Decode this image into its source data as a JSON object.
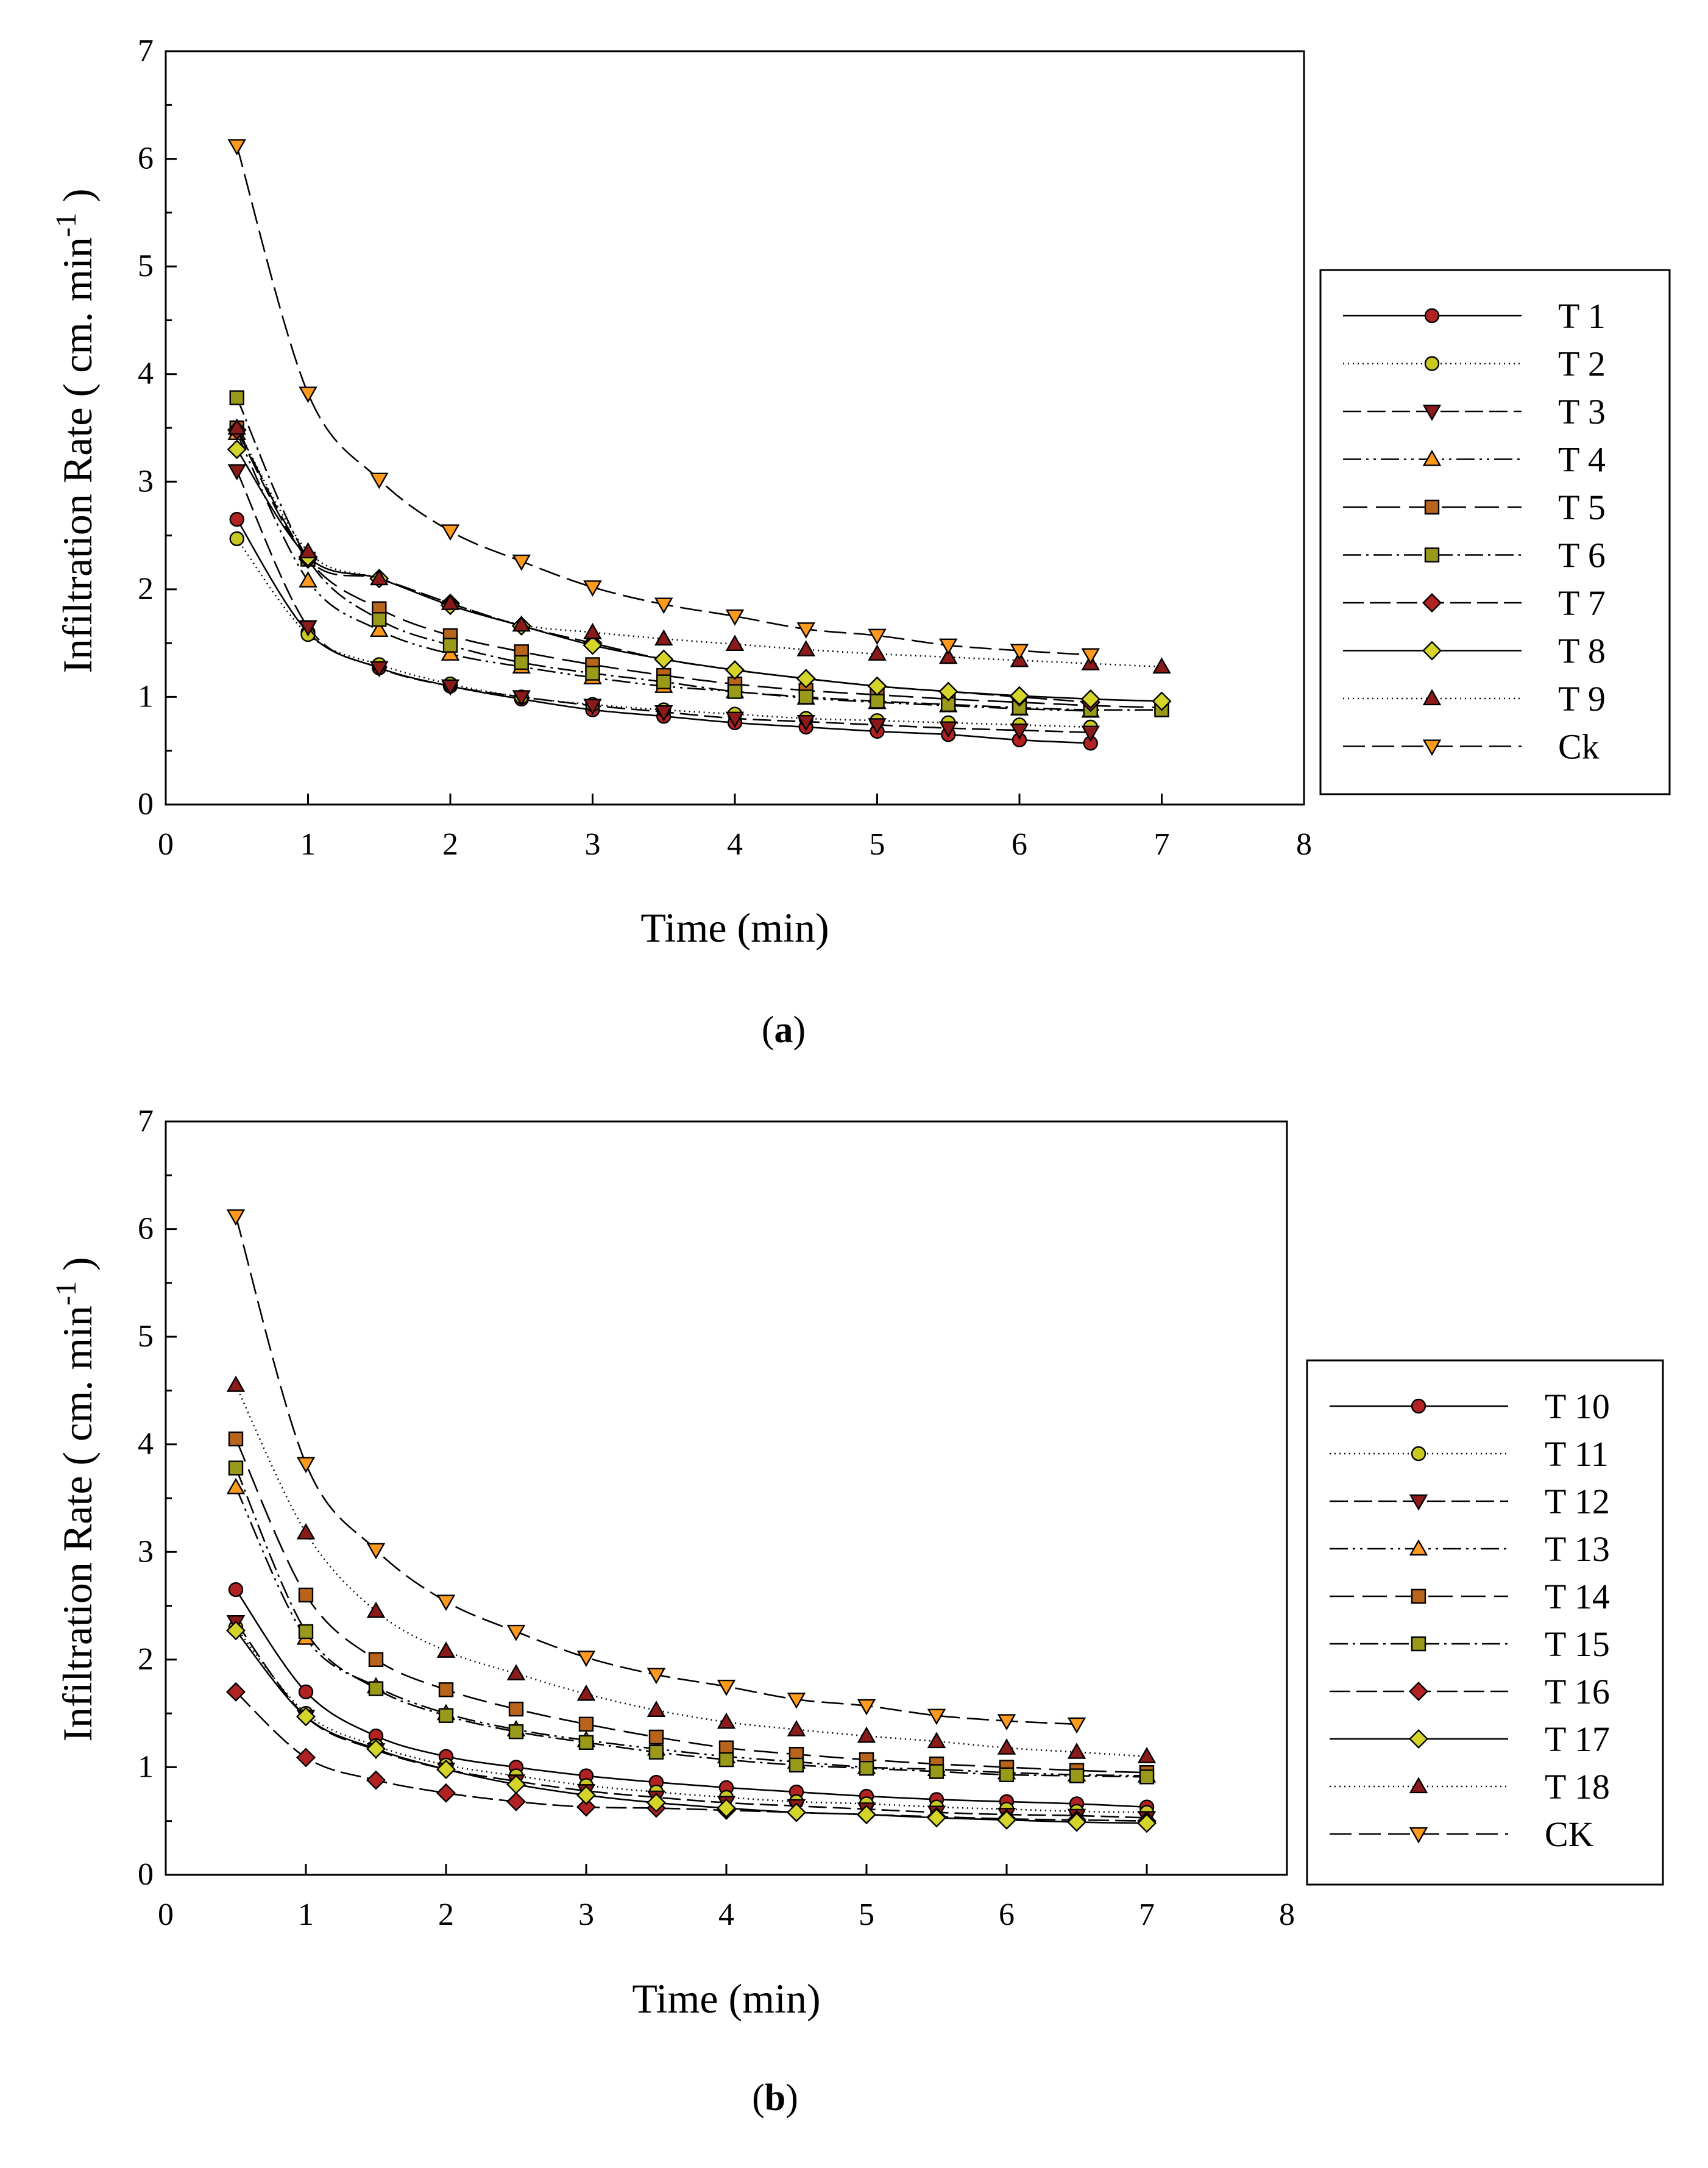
{
  "chart_data": [
    {
      "type": "line",
      "panel": "a",
      "title": "",
      "xlabel": "Time (min)",
      "ylabel_main": "Infiltration Rate ( cm. min",
      "ylabel_exp": "-1",
      "ylabel_close": " )",
      "xlim": [
        0,
        8
      ],
      "ylim": [
        0,
        7
      ],
      "xticks": [
        "0",
        "1",
        "2",
        "3",
        "4",
        "5",
        "6",
        "7",
        "8"
      ],
      "yticks": [
        "0",
        "1",
        "2",
        "3",
        "4",
        "5",
        "6",
        "7"
      ],
      "grid": false,
      "legend_position": "right",
      "caption_open": "(",
      "caption_letter": "a",
      "caption_close": ")",
      "series": [
        {
          "name": "T 1",
          "marker": "circle",
          "color": "#b22222",
          "dash": "",
          "x": [
            0.5,
            1,
            1.5,
            2,
            2.5,
            3,
            3.5,
            4,
            4.5,
            5,
            5.5,
            6,
            6.5
          ],
          "values": [
            2.65,
            1.6,
            1.27,
            1.1,
            0.98,
            0.88,
            0.82,
            0.76,
            0.72,
            0.68,
            0.65,
            0.6,
            0.57
          ]
        },
        {
          "name": "T 2",
          "marker": "circle",
          "color": "#c8c820",
          "dash": "2,6",
          "x": [
            0.5,
            1,
            1.5,
            2,
            2.5,
            3,
            3.5,
            4,
            4.5,
            5,
            5.5,
            6,
            6.5
          ],
          "values": [
            2.47,
            1.58,
            1.3,
            1.12,
            1.0,
            0.93,
            0.88,
            0.84,
            0.8,
            0.78,
            0.76,
            0.74,
            0.72
          ]
        },
        {
          "name": "T 3",
          "marker": "triangle-down",
          "color": "#8b1a1a",
          "dash": "30,10",
          "x": [
            0.5,
            1,
            1.5,
            2,
            2.5,
            3,
            3.5,
            4,
            4.5,
            5,
            5.5,
            6,
            6.5
          ],
          "values": [
            3.1,
            1.65,
            1.27,
            1.1,
            1.0,
            0.92,
            0.86,
            0.8,
            0.77,
            0.74,
            0.71,
            0.69,
            0.67
          ]
        },
        {
          "name": "T 4",
          "marker": "triangle-up",
          "color": "#ff9a1f",
          "dash": "30,8,4,8,4,8",
          "x": [
            0.5,
            1,
            1.5,
            2,
            2.5,
            3,
            3.5,
            4,
            4.5,
            5,
            5.5,
            6,
            6.5
          ],
          "values": [
            3.45,
            2.08,
            1.62,
            1.4,
            1.28,
            1.18,
            1.1,
            1.05,
            0.99,
            0.95,
            0.92,
            0.89,
            0.87
          ]
        },
        {
          "name": "T 5",
          "marker": "square",
          "color": "#b8651b",
          "dash": "40,14",
          "x": [
            0.5,
            1,
            1.5,
            2,
            2.5,
            3,
            3.5,
            4,
            4.5,
            5,
            5.5,
            6,
            6.5,
            7
          ],
          "values": [
            3.5,
            2.28,
            1.82,
            1.57,
            1.42,
            1.3,
            1.2,
            1.12,
            1.06,
            1.02,
            0.98,
            0.95,
            0.92,
            0.9
          ]
        },
        {
          "name": "T 6",
          "marker": "square",
          "color": "#9a9a1a",
          "dash": "30,8,4,8",
          "x": [
            0.5,
            1,
            1.5,
            2,
            2.5,
            3,
            3.5,
            4,
            4.5,
            5,
            5.5,
            6,
            6.5,
            7
          ],
          "values": [
            3.78,
            2.28,
            1.72,
            1.48,
            1.32,
            1.22,
            1.14,
            1.05,
            1.0,
            0.96,
            0.93,
            0.9,
            0.88,
            0.88
          ]
        },
        {
          "name": "T 7",
          "marker": "diamond",
          "color": "#b22222",
          "dash": "34,10",
          "x": [
            0.5,
            1,
            1.5,
            2,
            2.5,
            3,
            3.5,
            4,
            4.5,
            5,
            5.5,
            6,
            6.5
          ],
          "values": [
            3.48,
            2.28,
            2.1,
            1.87,
            1.66,
            1.5,
            1.35,
            1.25,
            1.17,
            1.1,
            1.05,
            1.0,
            0.95
          ]
        },
        {
          "name": "T 8",
          "marker": "diamond",
          "color": "#d4d42a",
          "dash": "",
          "x": [
            0.5,
            1,
            1.5,
            2,
            2.5,
            3,
            3.5,
            4,
            4.5,
            5,
            5.5,
            6,
            6.5,
            7
          ],
          "values": [
            3.3,
            2.3,
            2.1,
            1.85,
            1.66,
            1.48,
            1.35,
            1.25,
            1.17,
            1.1,
            1.05,
            1.01,
            0.98,
            0.96
          ]
        },
        {
          "name": "T 9",
          "marker": "triangle-up",
          "color": "#8b1a1a",
          "dash": "2,6",
          "x": [
            0.5,
            1,
            1.5,
            2,
            2.5,
            3,
            3.5,
            4,
            4.5,
            5,
            5.5,
            6,
            6.5,
            7
          ],
          "values": [
            3.5,
            2.35,
            2.1,
            1.87,
            1.67,
            1.6,
            1.54,
            1.49,
            1.44,
            1.4,
            1.37,
            1.34,
            1.31,
            1.28
          ]
        },
        {
          "name": "Ck",
          "marker": "triangle-down",
          "color": "#ff9a1f",
          "dash": "36,12",
          "x": [
            0.5,
            1,
            1.5,
            2,
            2.5,
            3,
            3.5,
            4,
            4.5,
            5,
            5.5,
            6,
            6.5
          ],
          "values": [
            6.12,
            3.82,
            3.02,
            2.54,
            2.26,
            2.02,
            1.86,
            1.75,
            1.63,
            1.57,
            1.48,
            1.43,
            1.39
          ]
        }
      ]
    },
    {
      "type": "line",
      "panel": "b",
      "title": "",
      "xlabel": "Time (min)",
      "ylabel_main": "Infiltration Rate ( cm. min",
      "ylabel_exp": "-1",
      "ylabel_close": " )",
      "xlim": [
        0,
        8
      ],
      "ylim": [
        0,
        7
      ],
      "xticks": [
        "0",
        "1",
        "2",
        "3",
        "4",
        "5",
        "6",
        "7",
        "8"
      ],
      "yticks": [
        "0",
        "1",
        "2",
        "3",
        "4",
        "5",
        "6",
        "7"
      ],
      "grid": false,
      "legend_position": "right",
      "caption_open": "(",
      "caption_letter": "b",
      "caption_close": ")",
      "series": [
        {
          "name": "T 10",
          "marker": "circle",
          "color": "#b22222",
          "dash": "",
          "x": [
            0.5,
            1,
            1.5,
            2,
            2.5,
            3,
            3.5,
            4,
            4.5,
            5,
            5.5,
            6,
            6.5,
            7
          ],
          "values": [
            2.65,
            1.7,
            1.29,
            1.1,
            1.0,
            0.92,
            0.86,
            0.81,
            0.77,
            0.73,
            0.7,
            0.68,
            0.66,
            0.63
          ]
        },
        {
          "name": "T 11",
          "marker": "circle",
          "color": "#c8c820",
          "dash": "2,6",
          "x": [
            0.5,
            1,
            1.5,
            2,
            2.5,
            3,
            3.5,
            4,
            4.5,
            5,
            5.5,
            6,
            6.5,
            7
          ],
          "values": [
            2.3,
            1.5,
            1.2,
            1.02,
            0.92,
            0.83,
            0.77,
            0.72,
            0.68,
            0.66,
            0.63,
            0.61,
            0.59,
            0.58
          ]
        },
        {
          "name": "T 12",
          "marker": "triangle-down",
          "color": "#8b1a1a",
          "dash": "30,10",
          "x": [
            0.5,
            1,
            1.5,
            2,
            2.5,
            3,
            3.5,
            4,
            4.5,
            5,
            5.5,
            6,
            6.5,
            7
          ],
          "values": [
            2.35,
            1.47,
            1.16,
            0.98,
            0.87,
            0.78,
            0.72,
            0.67,
            0.64,
            0.61,
            0.58,
            0.56,
            0.55,
            0.53
          ]
        },
        {
          "name": "T 13",
          "marker": "triangle-up",
          "color": "#ff9a1f",
          "dash": "30,8,4,8,4,8",
          "x": [
            0.5,
            1,
            1.5,
            2,
            2.5,
            3,
            3.5,
            4,
            4.5,
            5,
            5.5,
            6,
            6.5,
            7
          ],
          "values": [
            3.6,
            2.2,
            1.75,
            1.5,
            1.35,
            1.25,
            1.17,
            1.1,
            1.05,
            1.0,
            0.98,
            0.95,
            0.93,
            0.92
          ]
        },
        {
          "name": "T 14",
          "marker": "square",
          "color": "#b8651b",
          "dash": "40,14",
          "x": [
            0.5,
            1,
            1.5,
            2,
            2.5,
            3,
            3.5,
            4,
            4.5,
            5,
            5.5,
            6,
            6.5,
            7
          ],
          "values": [
            4.05,
            2.6,
            2.0,
            1.72,
            1.54,
            1.4,
            1.28,
            1.18,
            1.12,
            1.07,
            1.03,
            1.0,
            0.97,
            0.95
          ]
        },
        {
          "name": "T 15",
          "marker": "square",
          "color": "#9a9a1a",
          "dash": "30,8,4,8",
          "x": [
            0.5,
            1,
            1.5,
            2,
            2.5,
            3,
            3.5,
            4,
            4.5,
            5,
            5.5,
            6,
            6.5,
            7
          ],
          "values": [
            3.78,
            2.26,
            1.73,
            1.48,
            1.33,
            1.23,
            1.14,
            1.07,
            1.02,
            0.99,
            0.96,
            0.93,
            0.92,
            0.91
          ]
        },
        {
          "name": "T 16",
          "marker": "diamond",
          "color": "#b22222",
          "dash": "34,10",
          "x": [
            0.5,
            1,
            1.5,
            2,
            2.5,
            3,
            3.5,
            4,
            4.5,
            5,
            5.5,
            6,
            6.5,
            7
          ],
          "values": [
            1.7,
            1.09,
            0.88,
            0.76,
            0.68,
            0.63,
            0.62,
            0.6,
            0.58,
            0.56,
            0.54,
            0.52,
            0.51,
            0.5
          ]
        },
        {
          "name": "T 17",
          "marker": "diamond",
          "color": "#d4d42a",
          "dash": "",
          "x": [
            0.5,
            1,
            1.5,
            2,
            2.5,
            3,
            3.5,
            4,
            4.5,
            5,
            5.5,
            6,
            6.5,
            7
          ],
          "values": [
            2.27,
            1.47,
            1.17,
            0.98,
            0.84,
            0.74,
            0.67,
            0.62,
            0.58,
            0.56,
            0.53,
            0.51,
            0.49,
            0.48
          ]
        },
        {
          "name": "T 18",
          "marker": "triangle-up",
          "color": "#8b1a1a",
          "dash": "2,6",
          "x": [
            0.5,
            1,
            1.5,
            2,
            2.5,
            3,
            3.5,
            4,
            4.5,
            5,
            5.5,
            6,
            6.5,
            7
          ],
          "values": [
            4.55,
            3.18,
            2.45,
            2.08,
            1.87,
            1.68,
            1.53,
            1.42,
            1.35,
            1.29,
            1.24,
            1.18,
            1.14,
            1.1
          ]
        },
        {
          "name": "CK",
          "marker": "triangle-down",
          "color": "#ff9a1f",
          "dash": "36,12",
          "x": [
            0.5,
            1,
            1.5,
            2,
            2.5,
            3,
            3.5,
            4,
            4.5,
            5,
            5.5,
            6,
            6.5
          ],
          "values": [
            6.12,
            3.82,
            3.02,
            2.54,
            2.26,
            2.02,
            1.86,
            1.75,
            1.63,
            1.57,
            1.48,
            1.43,
            1.4
          ]
        }
      ]
    }
  ]
}
